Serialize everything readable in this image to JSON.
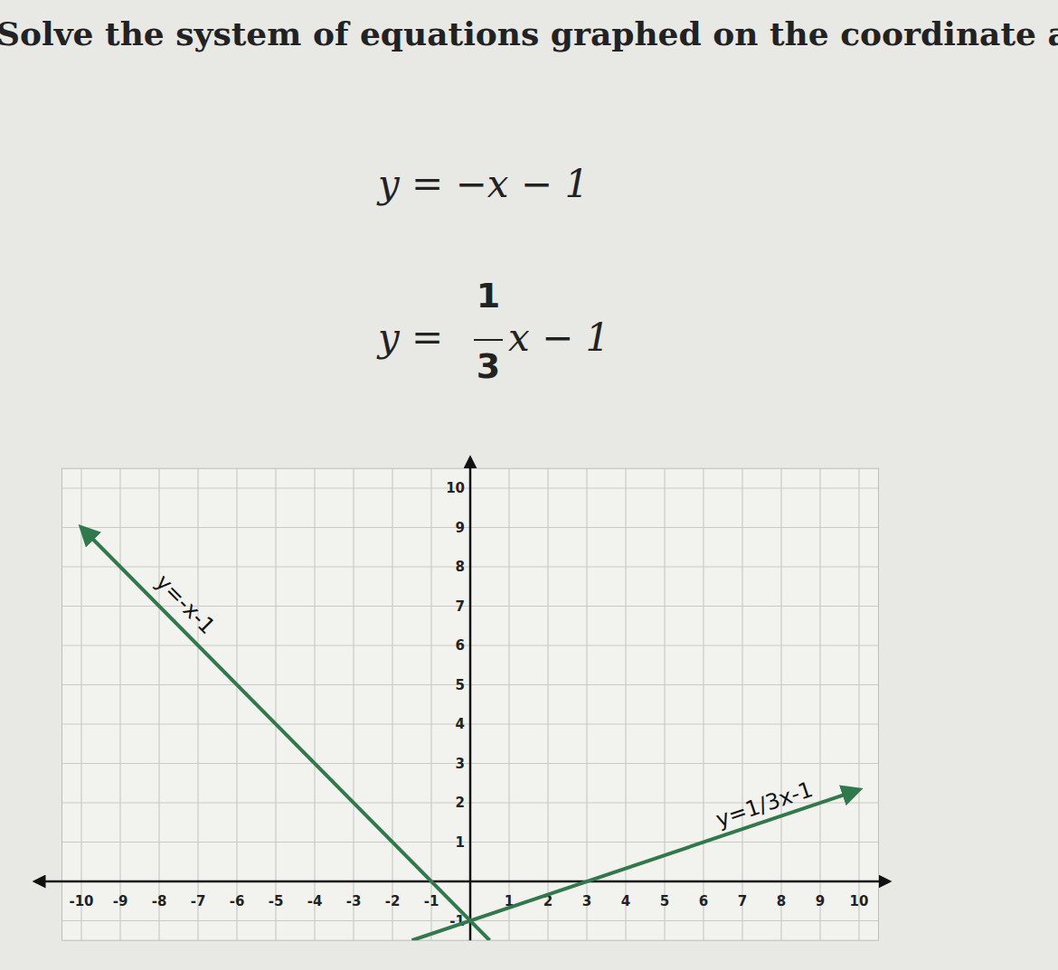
{
  "question": {
    "title": "Solve the system of equations graphed on the coordinate ax",
    "equations": [
      {
        "text": "y = −x − 1"
      },
      {
        "left": "y =",
        "numerator": "1",
        "denominator": "3",
        "right": "x − 1"
      }
    ]
  },
  "chart_data": {
    "type": "line",
    "xlim": [
      -10.5,
      10.5
    ],
    "ylim": [
      -1.5,
      10.5
    ],
    "xticks": [
      -10,
      -9,
      -8,
      -7,
      -6,
      -5,
      -4,
      -3,
      -2,
      -1,
      1,
      2,
      3,
      4,
      5,
      6,
      7,
      8,
      9,
      10
    ],
    "yticks": [
      -1,
      1,
      2,
      3,
      4,
      5,
      6,
      7,
      8,
      9,
      10
    ],
    "grid": true,
    "series": [
      {
        "name": "y=-x-1",
        "color": "#2f7a4a",
        "x": [
          -10,
          0.5
        ],
        "values": [
          9,
          -1.5
        ]
      },
      {
        "name": "y=1/3x-1",
        "color": "#2f7a4a",
        "x": [
          -1.5,
          10
        ],
        "values": [
          -1.5,
          2.33
        ]
      }
    ]
  }
}
